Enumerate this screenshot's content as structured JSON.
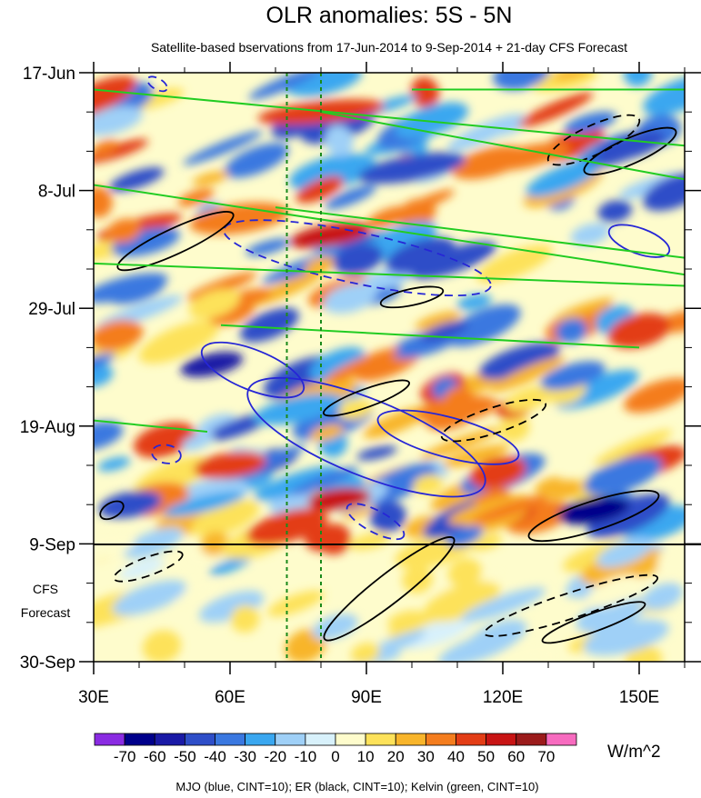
{
  "chart_data": {
    "type": "heatmap",
    "title": "OLR anomalies: 5S - 5N",
    "subtitle": "Satellite-based bservations from 17-Jun-2014 to 9-Sep-2014 + 21-day CFS Forecast",
    "x_ticks": [
      {
        "value": 30,
        "label": "30E"
      },
      {
        "value": 60,
        "label": "60E"
      },
      {
        "value": 90,
        "label": "90E"
      },
      {
        "value": 120,
        "label": "120E"
      },
      {
        "value": 150,
        "label": "150E"
      }
    ],
    "xlim": [
      30,
      160
    ],
    "y_ticks": [
      {
        "label": "17-Jun",
        "day": 0
      },
      {
        "label": "8-Jul",
        "day": 21
      },
      {
        "label": "29-Jul",
        "day": 42
      },
      {
        "label": "19-Aug",
        "day": 63
      },
      {
        "label": "9-Sep",
        "day": 84
      },
      {
        "label": "30-Sep",
        "day": 105
      }
    ],
    "forecast_label": [
      "CFS",
      "Forecast"
    ],
    "reference_longitudes": [
      72.5,
      80
    ],
    "colorbar": {
      "levels": [
        "-70",
        "-60",
        "-50",
        "-40",
        "-30",
        "-20",
        "-10",
        "0",
        "10",
        "20",
        "30",
        "40",
        "50",
        "60",
        "70"
      ],
      "colors": [
        "#8a2be2",
        "#00008b",
        "#1a1aa6",
        "#2e4ec8",
        "#3a78e0",
        "#3aa7f0",
        "#9fd0f7",
        "#d8f1fb",
        "#fefccc",
        "#fde25a",
        "#f8b52b",
        "#f47d1e",
        "#e33d16",
        "#c81414",
        "#9b1b1b",
        "#f76bbf"
      ],
      "unit": "W/m^2"
    },
    "footer": "MJO (blue, CINT=10); ER (black, CINT=10); Kelvin (green, CINT=10)"
  }
}
